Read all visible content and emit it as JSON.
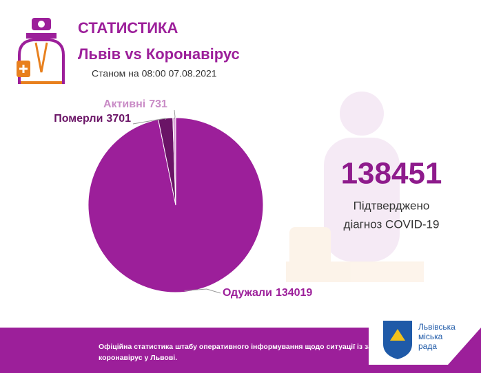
{
  "header": {
    "title": "СТАТИСТИКА",
    "subtitle": "Львів vs Коронавірус",
    "date": "Станом на 08:00 07.08.2021"
  },
  "chart_data": {
    "type": "pie",
    "categories": [
      "Одужали",
      "Померли",
      "Активні"
    ],
    "values": [
      134019,
      3701,
      731
    ],
    "colors": [
      "#9c1f9a",
      "#6a1466",
      "#d9a3d6"
    ]
  },
  "summary": {
    "total": "138451",
    "caption": [
      "Підтверджено",
      "діагноз COVID-19"
    ]
  },
  "footer": {
    "lines": [
      "Офіційна статистика штабу оперативного інформування щодо ситуації із за",
      "коронавірус у Львові."
    ]
  },
  "logo": {
    "lines": [
      "Львівська",
      "міська",
      "рада"
    ]
  }
}
